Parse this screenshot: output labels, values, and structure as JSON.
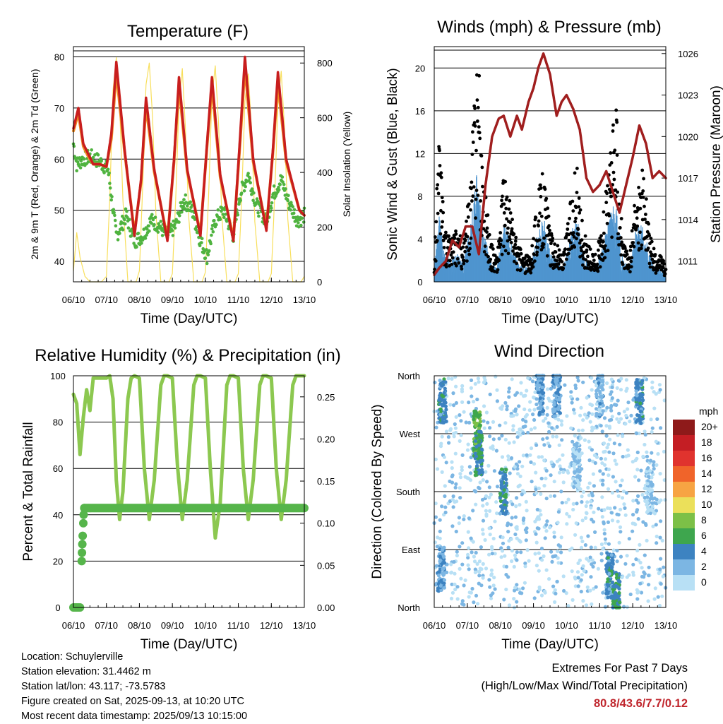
{
  "chart_data": [
    {
      "type": "line",
      "title": "Temperature (F)",
      "xlabel": "Time (Day/UTC)",
      "ylabel": "2m & 9m T (Red, Orange) & 2m Td (Green)",
      "y2label": "Solar Insolation (Yellow)",
      "ylim": [
        36,
        82
      ],
      "y2lim": [
        0,
        860
      ],
      "xlim": [
        0,
        7
      ],
      "x_ticks": [
        "06/10",
        "07/10",
        "08/10",
        "09/10",
        "10/10",
        "11/10",
        "12/10",
        "13/10"
      ],
      "y_ticks": [
        40,
        50,
        60,
        70,
        80
      ],
      "y2_ticks": [
        0,
        200,
        400,
        600,
        800
      ],
      "grid": true,
      "series": [
        {
          "name": "2m T",
          "color": "#c81e1e",
          "x": [
            0,
            0.15,
            0.3,
            0.45,
            0.6,
            0.8,
            1.0,
            1.15,
            1.3,
            1.55,
            1.85,
            2.05,
            2.2,
            2.45,
            2.85,
            3.05,
            3.2,
            3.45,
            3.85,
            4.05,
            4.2,
            4.45,
            4.85,
            5.05,
            5.2,
            5.45,
            5.85,
            6.05,
            6.2,
            6.45,
            6.85,
            7.0
          ],
          "values": [
            66,
            70,
            63,
            61,
            59,
            59,
            58.5,
            65,
            79,
            62,
            45,
            56,
            72,
            58,
            44,
            60,
            76,
            58,
            45,
            63,
            76,
            57,
            44,
            64,
            80,
            60,
            46,
            62,
            77,
            60,
            50,
            49
          ]
        },
        {
          "name": "9m T",
          "color": "#f08a24",
          "x": [
            0,
            0.15,
            0.3,
            0.45,
            0.6,
            0.8,
            1.0,
            1.15,
            1.3,
            1.55,
            1.85,
            2.05,
            2.2,
            2.45,
            2.85,
            3.05,
            3.2,
            3.45,
            3.85,
            4.05,
            4.2,
            4.45,
            4.85,
            5.05,
            5.2,
            5.45,
            5.85,
            6.05,
            6.2,
            6.45,
            6.85,
            7.0
          ],
          "values": [
            65.5,
            69,
            62.5,
            60.5,
            59,
            59,
            58.5,
            64,
            77,
            61.5,
            45.5,
            55.5,
            70.5,
            57.5,
            44.5,
            59.5,
            74.5,
            57.5,
            45.5,
            62.5,
            74.5,
            56.5,
            44.5,
            63,
            78,
            59.5,
            46.5,
            61.5,
            75,
            59.5,
            50,
            49
          ]
        },
        {
          "name": "2m Td",
          "color": "#4fb33f",
          "x": [
            0,
            0.1,
            0.3,
            0.5,
            0.8,
            1.05,
            1.3,
            1.6,
            1.85,
            2.1,
            2.35,
            2.6,
            2.85,
            3.1,
            3.35,
            3.6,
            3.85,
            4.05,
            4.3,
            4.55,
            4.85,
            5.05,
            5.3,
            5.55,
            5.85,
            6.05,
            6.3,
            6.5,
            6.8,
            7.0
          ],
          "values": [
            63,
            59,
            60,
            60.5,
            59.5,
            58,
            45,
            49,
            44,
            45,
            48,
            47,
            45,
            47,
            52,
            50,
            44,
            41,
            48,
            50,
            45,
            53,
            57,
            51,
            48,
            53,
            56,
            52,
            48,
            49
          ]
        },
        {
          "name": "Solar Insolation",
          "color": "#f7dc4a",
          "axis": "y2",
          "x": [
            0,
            0.1,
            0.2,
            0.35,
            0.5,
            0.65,
            0.85,
            1.0,
            1.1,
            1.2,
            1.3,
            1.4,
            1.5,
            1.65,
            1.9,
            2.0,
            2.1,
            2.2,
            2.3,
            2.4,
            2.5,
            2.65,
            2.9,
            3.0,
            3.1,
            3.2,
            3.3,
            3.4,
            3.5,
            3.65,
            3.9,
            4.0,
            4.1,
            4.2,
            4.3,
            4.4,
            4.5,
            4.65,
            4.9,
            5.0,
            5.1,
            5.2,
            5.3,
            5.4,
            5.5,
            5.65,
            5.9,
            6.0,
            6.1,
            6.2,
            6.3,
            6.4,
            6.5,
            6.65,
            6.9,
            7.0
          ],
          "values": [
            40,
            180,
            90,
            20,
            0,
            0,
            0,
            20,
            300,
            700,
            820,
            650,
            300,
            0,
            0,
            40,
            350,
            720,
            800,
            600,
            250,
            0,
            0,
            30,
            300,
            650,
            780,
            550,
            230,
            0,
            0,
            35,
            320,
            680,
            790,
            580,
            240,
            0,
            0,
            30,
            300,
            660,
            760,
            560,
            220,
            0,
            0,
            30,
            310,
            650,
            770,
            560,
            230,
            0,
            0,
            20
          ]
        }
      ]
    },
    {
      "type": "line",
      "title": "Winds (mph) & Pressure (mb)",
      "xlabel": "Time (Day/UTC)",
      "ylabel": "Sonic Wind & Gust (Blue, Black)",
      "y2label": "Station Pressure (Maroon)",
      "ylim": [
        0,
        22
      ],
      "y2lim": [
        1009.5,
        1026.5
      ],
      "xlim": [
        0,
        7
      ],
      "x_ticks": [
        "06/10",
        "07/10",
        "08/10",
        "09/10",
        "10/10",
        "11/10",
        "12/10",
        "13/10"
      ],
      "y_ticks": [
        0,
        4,
        8,
        12,
        16,
        20
      ],
      "y2_ticks": [
        1011,
        1014,
        1017,
        1020,
        1023,
        1026
      ],
      "grid": true,
      "series": [
        {
          "name": "Station Pressure",
          "color": "#a01e1e",
          "axis": "y2",
          "x": [
            0,
            0.15,
            0.35,
            0.55,
            0.75,
            0.95,
            1.15,
            1.35,
            1.55,
            1.75,
            1.95,
            2.1,
            2.3,
            2.5,
            2.65,
            2.85,
            3.0,
            3.15,
            3.3,
            3.5,
            3.7,
            3.85,
            4.0,
            4.2,
            4.4,
            4.6,
            4.8,
            5.0,
            5.2,
            5.4,
            5.6,
            5.8,
            6.0,
            6.2,
            6.4,
            6.6,
            6.8,
            7.0
          ],
          "values": [
            1010,
            1010.5,
            1011,
            1012.5,
            1012,
            1013.5,
            1013.5,
            1011.5,
            1016.5,
            1020,
            1021.3,
            1021.5,
            1020,
            1021.5,
            1020.5,
            1022.5,
            1023.5,
            1025,
            1026,
            1024.5,
            1021.5,
            1022.5,
            1023,
            1022,
            1020.5,
            1017,
            1016,
            1016.5,
            1017.5,
            1016,
            1014.5,
            1016.5,
            1018.5,
            1020.8,
            1019.5,
            1017,
            1017.5,
            1017
          ]
        },
        {
          "name": "Gust",
          "color": "#000000",
          "x": [
            0,
            0.15,
            0.3,
            0.5,
            0.7,
            0.9,
            1.1,
            1.3,
            1.45,
            1.7,
            1.9,
            2.1,
            2.3,
            2.5,
            2.7,
            2.9,
            3.1,
            3.3,
            3.5,
            3.7,
            3.9,
            4.1,
            4.3,
            4.5,
            4.7,
            4.9,
            5.1,
            5.3,
            5.5,
            5.7,
            5.9,
            6.1,
            6.3,
            6.5,
            6.7,
            6.9,
            7.0
          ],
          "values": [
            2,
            12.5,
            4,
            3.5,
            4,
            3,
            8,
            19.5,
            10,
            3,
            2,
            8,
            6,
            3,
            2,
            2,
            6,
            9,
            4,
            3,
            2,
            6,
            9,
            4,
            2.5,
            2,
            5,
            9,
            14,
            3,
            2,
            7,
            9,
            4,
            2,
            2,
            1
          ]
        },
        {
          "name": "Wind",
          "color": "#4f95cf",
          "x": [
            0,
            0.15,
            0.3,
            0.5,
            0.7,
            0.9,
            1.1,
            1.3,
            1.45,
            1.7,
            1.9,
            2.1,
            2.3,
            2.5,
            2.7,
            2.9,
            3.1,
            3.3,
            3.5,
            3.7,
            3.9,
            4.1,
            4.3,
            4.5,
            4.7,
            4.9,
            5.1,
            5.3,
            5.5,
            5.7,
            5.9,
            6.1,
            6.3,
            6.5,
            6.7,
            6.9,
            7.0
          ],
          "values": [
            1,
            5,
            2,
            1.5,
            2,
            1.5,
            4,
            7.5,
            4,
            1.5,
            1,
            4,
            3,
            1.5,
            1,
            1,
            3,
            4.5,
            2,
            1.5,
            1,
            3,
            4.5,
            2,
            1,
            1,
            2.5,
            4.5,
            5.5,
            1.5,
            1,
            3.5,
            4,
            2,
            1,
            1,
            0.5
          ]
        }
      ]
    },
    {
      "type": "line",
      "title": "Relative Humidity (%) & Precipitation (in)",
      "xlabel": "Time (Day/UTC)",
      "ylabel": "Percent & Total Rainfall",
      "ylim": [
        0,
        100
      ],
      "y2lim": [
        0,
        0.275
      ],
      "xlim": [
        0,
        7
      ],
      "x_ticks": [
        "06/10",
        "07/10",
        "08/10",
        "09/10",
        "10/10",
        "11/10",
        "12/10",
        "13/10"
      ],
      "y_ticks": [
        0,
        20,
        40,
        60,
        80,
        100
      ],
      "y2_ticks": [
        "0.00",
        "0.05",
        "0.10",
        "0.15",
        "0.20",
        "0.25"
      ],
      "grid": true,
      "series": [
        {
          "name": "Relative Humidity",
          "color": "#8cc850",
          "x": [
            0,
            0.1,
            0.2,
            0.3,
            0.4,
            0.5,
            0.6,
            0.75,
            1.0,
            1.1,
            1.2,
            1.3,
            1.4,
            1.5,
            1.65,
            1.75,
            1.85,
            2.0,
            2.15,
            2.3,
            2.45,
            2.65,
            2.75,
            2.85,
            3.0,
            3.15,
            3.3,
            3.45,
            3.65,
            3.75,
            3.85,
            4.0,
            4.15,
            4.3,
            4.45,
            4.65,
            4.75,
            4.85,
            5.0,
            5.15,
            5.3,
            5.45,
            5.65,
            5.75,
            5.85,
            6.0,
            6.15,
            6.3,
            6.45,
            6.65,
            6.75,
            6.85,
            7.0
          ],
          "values": [
            92,
            88,
            66,
            82,
            94,
            85,
            99,
            99,
            99,
            100,
            90,
            55,
            38,
            50,
            90,
            99,
            100,
            99,
            60,
            38,
            55,
            96,
            100,
            100,
            99,
            62,
            38,
            55,
            96,
            100,
            100,
            99,
            60,
            30,
            45,
            96,
            100,
            100,
            99,
            60,
            38,
            55,
            96,
            100,
            100,
            99,
            60,
            38,
            55,
            96,
            100,
            100,
            100
          ]
        },
        {
          "name": "Total Rainfall",
          "color": "#56b54b",
          "axis": "y2",
          "x": [
            0,
            0.2,
            0.25,
            0.27,
            0.28,
            0.3,
            0.32,
            0.35,
            0.4,
            1.0,
            2.0,
            3.0,
            4.0,
            5.0,
            6.0,
            7.0
          ],
          "values": [
            0,
            0,
            0.055,
            0.065,
            0.075,
            0.085,
            0.1,
            0.115,
            0.118,
            0.118,
            0.118,
            0.118,
            0.118,
            0.118,
            0.118,
            0.118
          ]
        }
      ]
    },
    {
      "type": "scatter",
      "title": "Wind Direction",
      "xlabel": "Time (Day/UTC)",
      "ylabel": "Direction (Colored By Speed)",
      "xlim": [
        0,
        7
      ],
      "ylim": [
        0,
        360
      ],
      "x_ticks": [
        "06/10",
        "07/10",
        "08/10",
        "09/10",
        "10/10",
        "11/10",
        "12/10",
        "13/10"
      ],
      "y_ticks": [
        "North",
        "East",
        "South",
        "West",
        "North"
      ],
      "grid": true,
      "legend": {
        "title": "mph",
        "labels": [
          "20+",
          "18",
          "16",
          "14",
          "12",
          "10",
          "8",
          "6",
          "4",
          "2",
          "0"
        ],
        "colors": [
          "#8e1a1a",
          "#c41e24",
          "#e0332e",
          "#f0642a",
          "#f7a443",
          "#ebe05a",
          "#7cc047",
          "#3ea64e",
          "#3d83c1",
          "#7cb6e3",
          "#b8e0f5"
        ]
      },
      "clusters": [
        {
          "x": 0.2,
          "dir": 60,
          "speed": 3
        },
        {
          "x": 0.25,
          "dir": 320,
          "speed": 4
        },
        {
          "x": 1.3,
          "dir": 270,
          "speed": 7
        },
        {
          "x": 1.35,
          "dir": 240,
          "speed": 5
        },
        {
          "x": 2.1,
          "dir": 180,
          "speed": 4
        },
        {
          "x": 3.2,
          "dir": 335,
          "speed": 3
        },
        {
          "x": 3.7,
          "dir": 330,
          "speed": 3
        },
        {
          "x": 4.3,
          "dir": 220,
          "speed": 1
        },
        {
          "x": 5.0,
          "dir": 330,
          "speed": 2
        },
        {
          "x": 5.3,
          "dir": 50,
          "speed": 4
        },
        {
          "x": 5.5,
          "dir": 20,
          "speed": 5
        },
        {
          "x": 6.2,
          "dir": 320,
          "speed": 4
        },
        {
          "x": 6.5,
          "dir": 180,
          "speed": 1
        }
      ]
    }
  ],
  "footer": {
    "location": "Location: Schuylerville",
    "elevation": "Station elevation: 31.4462 m",
    "latlon": "Station lat/lon: 43.117; -73.5783",
    "created": "Figure created on Sat, 2025-09-13, at 10:20 UTC",
    "recent": "Most recent data timestamp: 2025/09/13 10:15:00",
    "extremes_title": "Extremes For Past 7 Days",
    "extremes_sub": "(High/Low/Max Wind/Total Precipitation)",
    "extremes_values": "80.8/43.6/7.7/0.12"
  }
}
